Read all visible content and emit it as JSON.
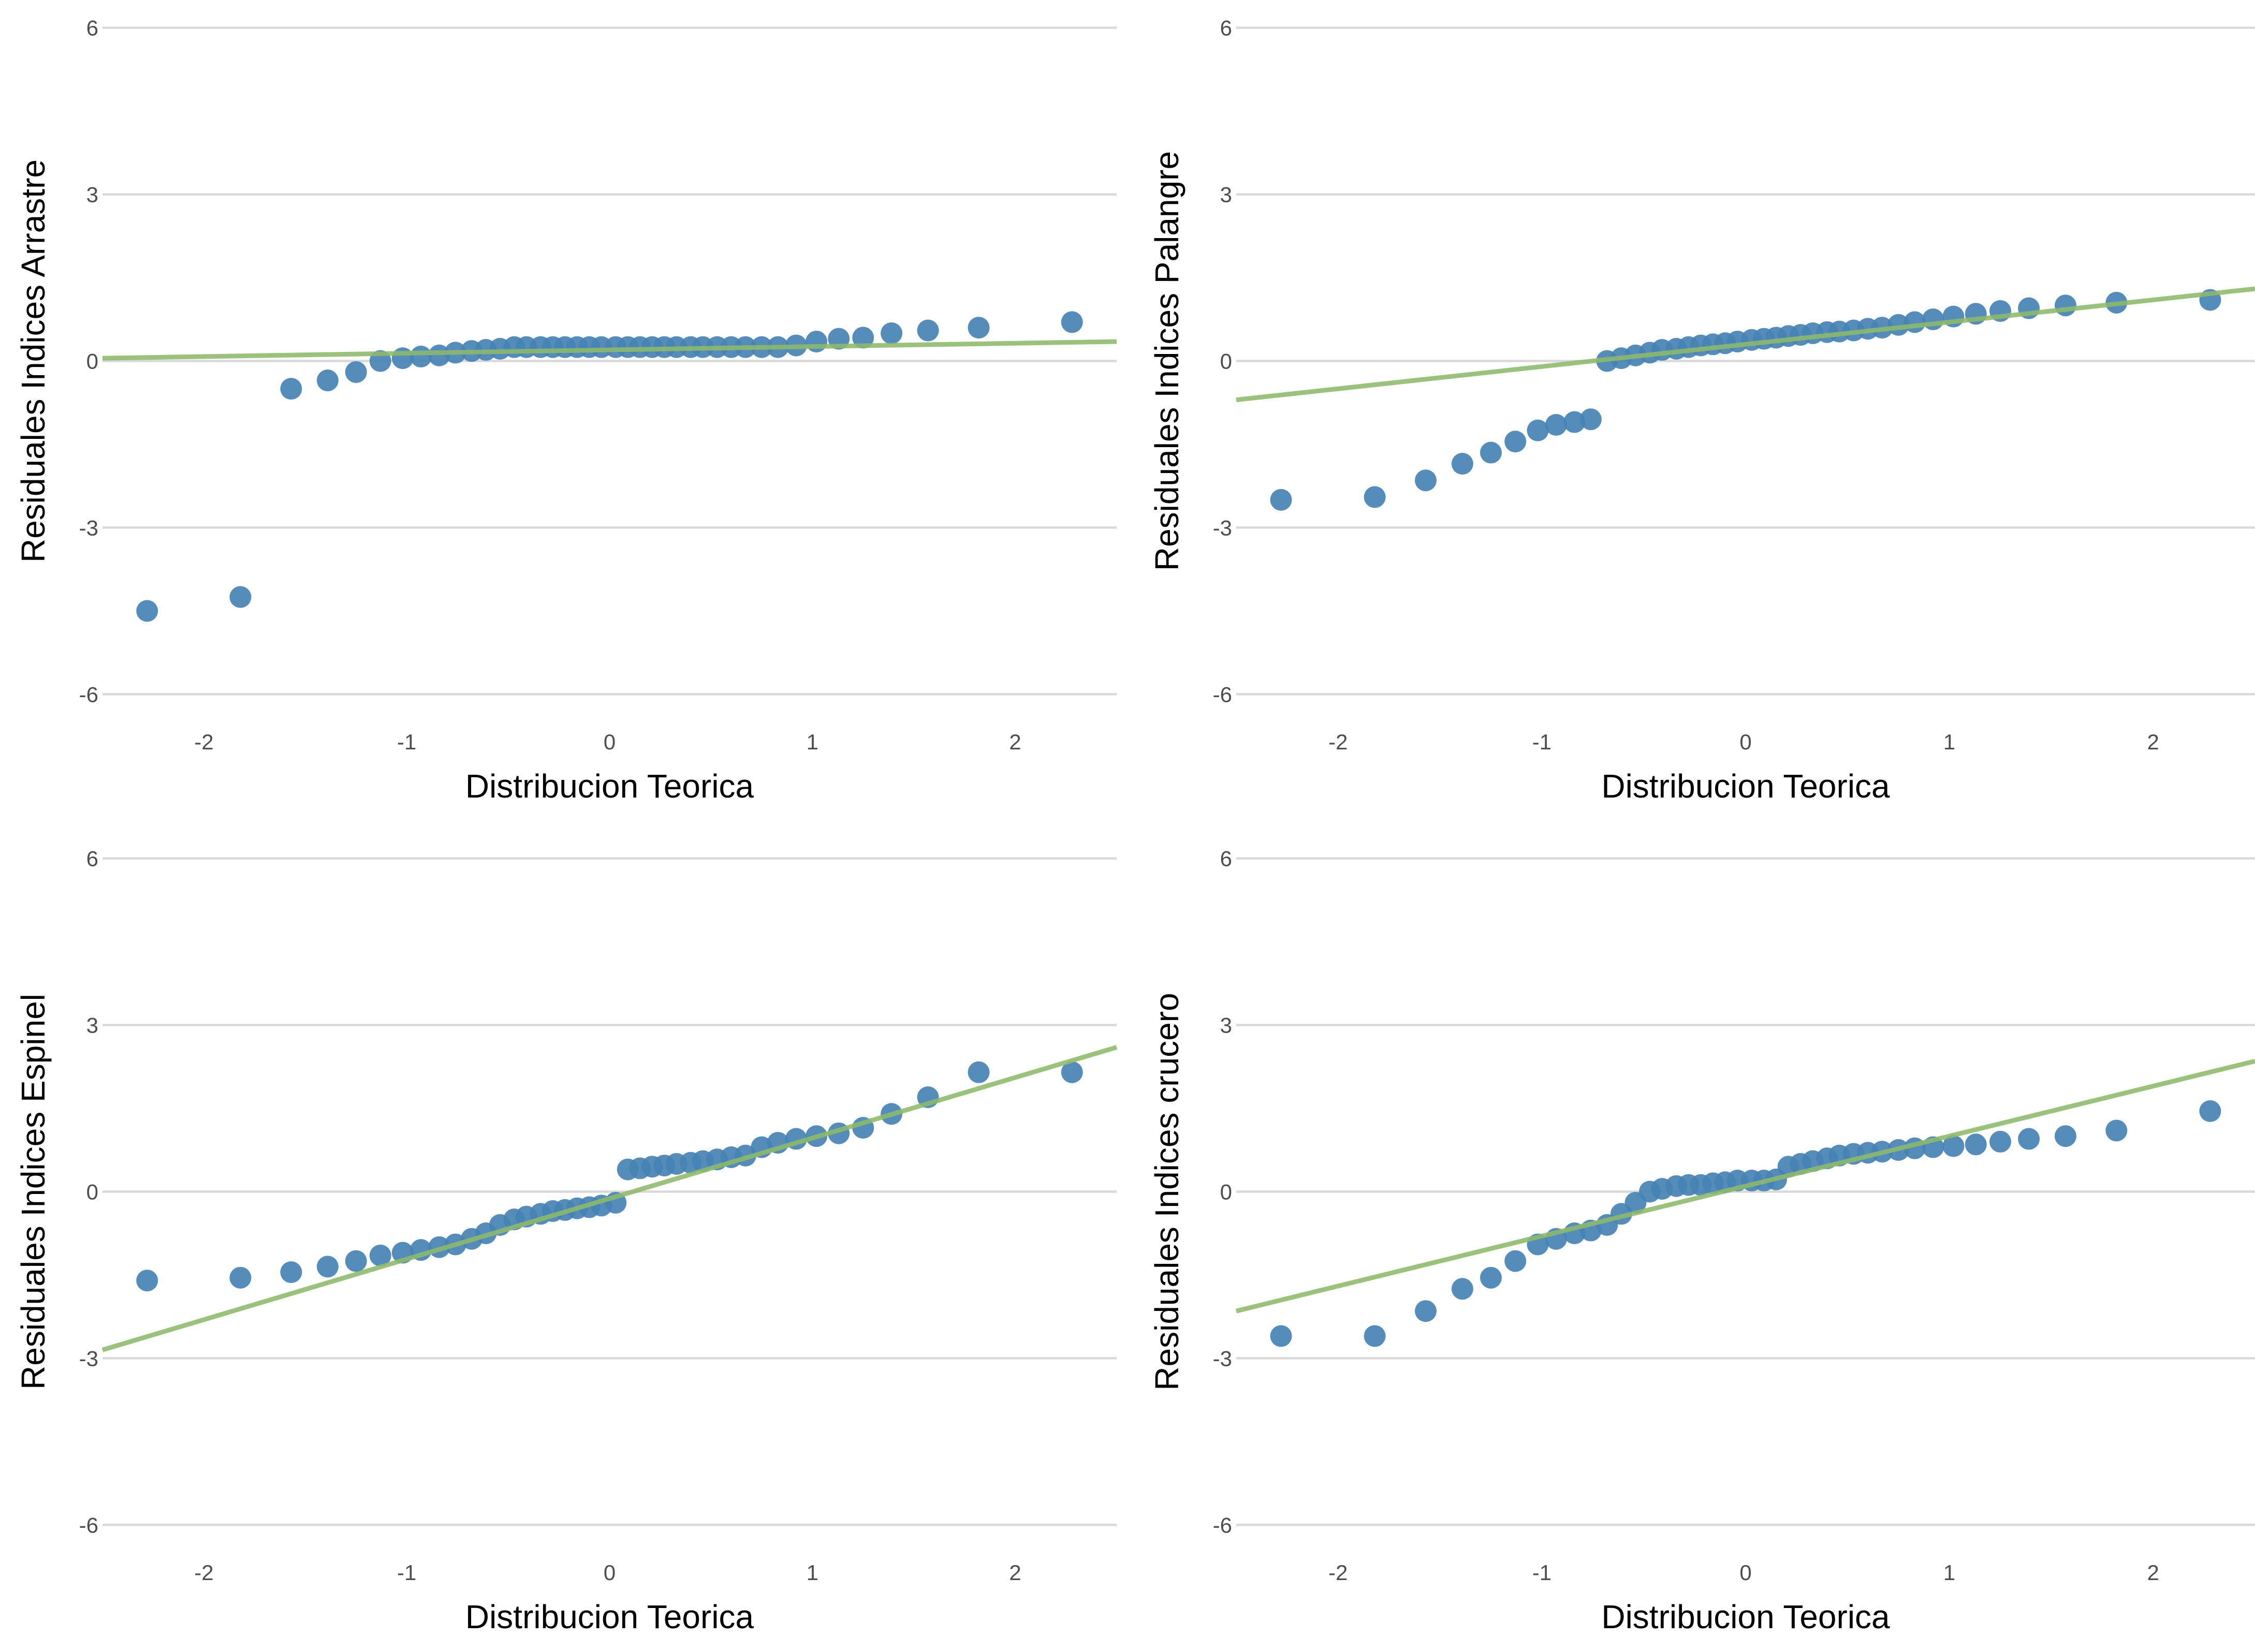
{
  "chart_data": [
    {
      "type": "scatter",
      "xlabel": "Distribucion Teorica",
      "ylabel": "Residuales Indices Arrastre",
      "xlim": [
        -2.5,
        2.5
      ],
      "ylim": [
        -6.5,
        6.5
      ],
      "xticks": [
        "-2",
        "-1",
        "0",
        "1",
        "2"
      ],
      "yticks": [
        "-6",
        "-3",
        "0",
        "3",
        "6"
      ],
      "grid": "horizontal",
      "point_color": "#4682B4",
      "line_color": "#8DB96B",
      "reference_line": {
        "x": [
          -2.5,
          2.5
        ],
        "y": [
          0.05,
          0.35
        ]
      },
      "points": {
        "x": [
          -2.28,
          -1.82,
          -1.57,
          -1.39,
          -1.25,
          -1.13,
          -1.02,
          -0.93,
          -0.84,
          -0.76,
          -0.68,
          -0.61,
          -0.54,
          -0.47,
          -0.41,
          -0.34,
          -0.28,
          -0.22,
          -0.16,
          -0.1,
          -0.04,
          0.03,
          0.09,
          0.15,
          0.21,
          0.27,
          0.33,
          0.4,
          0.46,
          0.53,
          0.6,
          0.67,
          0.75,
          0.83,
          0.92,
          1.02,
          1.13,
          1.25,
          1.39,
          1.57,
          1.82,
          2.28
        ],
        "y": [
          -4.5,
          -4.25,
          -0.5,
          -0.35,
          -0.2,
          0.0,
          0.05,
          0.08,
          0.1,
          0.15,
          0.18,
          0.2,
          0.22,
          0.25,
          0.25,
          0.25,
          0.25,
          0.25,
          0.25,
          0.25,
          0.25,
          0.25,
          0.25,
          0.25,
          0.25,
          0.25,
          0.25,
          0.25,
          0.25,
          0.25,
          0.25,
          0.25,
          0.25,
          0.25,
          0.28,
          0.35,
          0.4,
          0.42,
          0.5,
          0.55,
          0.6,
          0.7
        ]
      }
    },
    {
      "type": "scatter",
      "xlabel": "Distribucion Teorica",
      "ylabel": "Residuales Indices Palangre",
      "xlim": [
        -2.5,
        2.5
      ],
      "ylim": [
        -6.5,
        6.5
      ],
      "xticks": [
        "-2",
        "-1",
        "0",
        "1",
        "2"
      ],
      "yticks": [
        "-6",
        "-3",
        "0",
        "3",
        "6"
      ],
      "grid": "horizontal",
      "point_color": "#4682B4",
      "line_color": "#8DB96B",
      "reference_line": {
        "x": [
          -2.5,
          2.5
        ],
        "y": [
          -0.7,
          1.3
        ]
      },
      "points": {
        "x": [
          -2.28,
          -1.82,
          -1.57,
          -1.39,
          -1.25,
          -1.13,
          -1.02,
          -0.93,
          -0.84,
          -0.76,
          -0.68,
          -0.61,
          -0.54,
          -0.47,
          -0.41,
          -0.34,
          -0.28,
          -0.22,
          -0.16,
          -0.1,
          -0.04,
          0.03,
          0.09,
          0.15,
          0.21,
          0.27,
          0.33,
          0.4,
          0.46,
          0.53,
          0.6,
          0.67,
          0.75,
          0.83,
          0.92,
          1.02,
          1.13,
          1.25,
          1.39,
          1.57,
          1.82,
          2.28
        ],
        "y": [
          -2.5,
          -2.45,
          -2.15,
          -1.85,
          -1.65,
          -1.45,
          -1.25,
          -1.15,
          -1.1,
          -1.05,
          0.0,
          0.05,
          0.1,
          0.15,
          0.2,
          0.22,
          0.25,
          0.28,
          0.3,
          0.32,
          0.35,
          0.38,
          0.4,
          0.42,
          0.45,
          0.47,
          0.5,
          0.52,
          0.53,
          0.55,
          0.58,
          0.6,
          0.65,
          0.7,
          0.75,
          0.8,
          0.85,
          0.9,
          0.95,
          1.0,
          1.05,
          1.1
        ]
      }
    },
    {
      "type": "scatter",
      "xlabel": "Distribucion Teorica",
      "ylabel": "Residuales Indices Espinel",
      "xlim": [
        -2.5,
        2.5
      ],
      "ylim": [
        -6.5,
        6.5
      ],
      "xticks": [
        "-2",
        "-1",
        "0",
        "1",
        "2"
      ],
      "yticks": [
        "-6",
        "-3",
        "0",
        "3",
        "6"
      ],
      "grid": "horizontal",
      "point_color": "#4682B4",
      "line_color": "#8DB96B",
      "reference_line": {
        "x": [
          -2.5,
          2.5
        ],
        "y": [
          -2.85,
          2.6
        ]
      },
      "points": {
        "x": [
          -2.28,
          -1.82,
          -1.57,
          -1.39,
          -1.25,
          -1.13,
          -1.02,
          -0.93,
          -0.84,
          -0.76,
          -0.68,
          -0.61,
          -0.54,
          -0.47,
          -0.41,
          -0.34,
          -0.28,
          -0.22,
          -0.16,
          -0.1,
          -0.04,
          0.03,
          0.09,
          0.15,
          0.21,
          0.27,
          0.33,
          0.4,
          0.46,
          0.53,
          0.6,
          0.67,
          0.75,
          0.83,
          0.92,
          1.02,
          1.13,
          1.25,
          1.39,
          1.57,
          1.82,
          2.28
        ],
        "y": [
          -1.6,
          -1.55,
          -1.45,
          -1.35,
          -1.25,
          -1.15,
          -1.1,
          -1.05,
          -1.0,
          -0.95,
          -0.85,
          -0.75,
          -0.6,
          -0.5,
          -0.45,
          -0.4,
          -0.35,
          -0.33,
          -0.3,
          -0.28,
          -0.25,
          -0.2,
          0.4,
          0.42,
          0.45,
          0.47,
          0.5,
          0.52,
          0.55,
          0.58,
          0.62,
          0.65,
          0.8,
          0.88,
          0.95,
          1.0,
          1.05,
          1.15,
          1.4,
          1.7,
          2.15,
          2.15
        ]
      }
    },
    {
      "type": "scatter",
      "xlabel": "Distribucion Teorica",
      "ylabel": "Residuales Indices crucero",
      "xlim": [
        -2.5,
        2.5
      ],
      "ylim": [
        -6.5,
        6.5
      ],
      "xticks": [
        "-2",
        "-1",
        "0",
        "1",
        "2"
      ],
      "yticks": [
        "-6",
        "-3",
        "0",
        "3",
        "6"
      ],
      "grid": "horizontal",
      "point_color": "#4682B4",
      "line_color": "#8DB96B",
      "reference_line": {
        "x": [
          -2.5,
          2.5
        ],
        "y": [
          -2.15,
          2.35
        ]
      },
      "points": {
        "x": [
          -2.28,
          -1.82,
          -1.57,
          -1.39,
          -1.25,
          -1.13,
          -1.02,
          -0.93,
          -0.84,
          -0.76,
          -0.68,
          -0.61,
          -0.54,
          -0.47,
          -0.41,
          -0.34,
          -0.28,
          -0.22,
          -0.16,
          -0.1,
          -0.04,
          0.03,
          0.09,
          0.15,
          0.21,
          0.27,
          0.33,
          0.4,
          0.46,
          0.53,
          0.6,
          0.67,
          0.75,
          0.83,
          0.92,
          1.02,
          1.13,
          1.25,
          1.39,
          1.57,
          1.82,
          2.28
        ],
        "y": [
          -2.6,
          -2.6,
          -2.15,
          -1.75,
          -1.55,
          -1.25,
          -0.95,
          -0.85,
          -0.75,
          -0.7,
          -0.6,
          -0.4,
          -0.2,
          0.0,
          0.05,
          0.1,
          0.12,
          0.12,
          0.15,
          0.17,
          0.2,
          0.2,
          0.2,
          0.22,
          0.45,
          0.5,
          0.55,
          0.6,
          0.65,
          0.68,
          0.7,
          0.72,
          0.75,
          0.78,
          0.8,
          0.82,
          0.85,
          0.9,
          0.95,
          1.0,
          1.1,
          1.45
        ]
      }
    }
  ]
}
